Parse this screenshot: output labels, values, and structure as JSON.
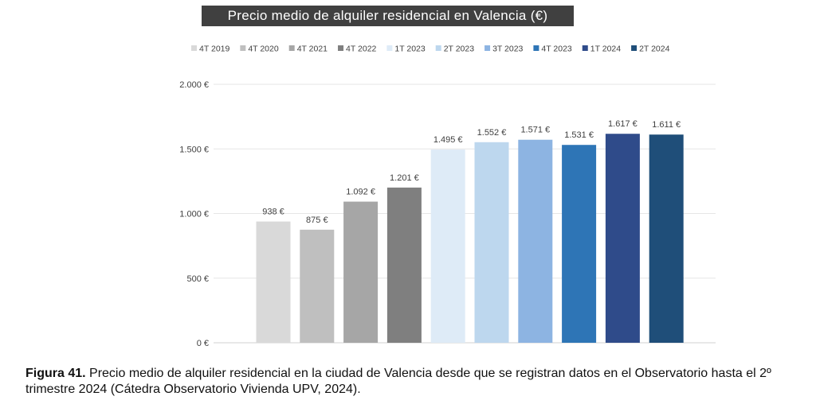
{
  "chart_data": {
    "type": "bar",
    "title": "Precio medio de alquiler residencial en Valencia (€)",
    "categories": [
      "4T 2019",
      "4T 2020",
      "4T 2021",
      "4T 2022",
      "1T 2023",
      "2T 2023",
      "3T 2023",
      "4T 2023",
      "1T 2024",
      "2T 2024"
    ],
    "values": [
      938,
      875,
      1092,
      1201,
      1495,
      1552,
      1571,
      1531,
      1617,
      1611
    ],
    "value_labels": [
      "938 €",
      "875 €",
      "1.092 €",
      "1.201 €",
      "1.495 €",
      "1.552 €",
      "1.571 €",
      "1.531 €",
      "1.617 €",
      "1.611 €"
    ],
    "colors": [
      "#d9d9d9",
      "#bfbfbf",
      "#a6a6a6",
      "#7f7f7f",
      "#deebf7",
      "#bdd7ee",
      "#8db4e2",
      "#2e75b6",
      "#2f4b8a",
      "#1f4e79"
    ],
    "ylim": [
      0,
      2000
    ],
    "yticks": [
      0,
      500,
      1000,
      1500,
      2000
    ],
    "ytick_labels": [
      "0 €",
      "500 €",
      "1.000 €",
      "1.500 €",
      "2.000 €"
    ],
    "grid": true,
    "legend": "top",
    "xlabel": "",
    "ylabel": ""
  },
  "caption": {
    "label": "Figura 41.",
    "text": " Precio medio de alquiler residencial en la ciudad de Valencia desde que se registran datos en el Observatorio hasta el 2º trimestre 2024 (Cátedra Observatorio Vivienda UPV, 2024)."
  }
}
